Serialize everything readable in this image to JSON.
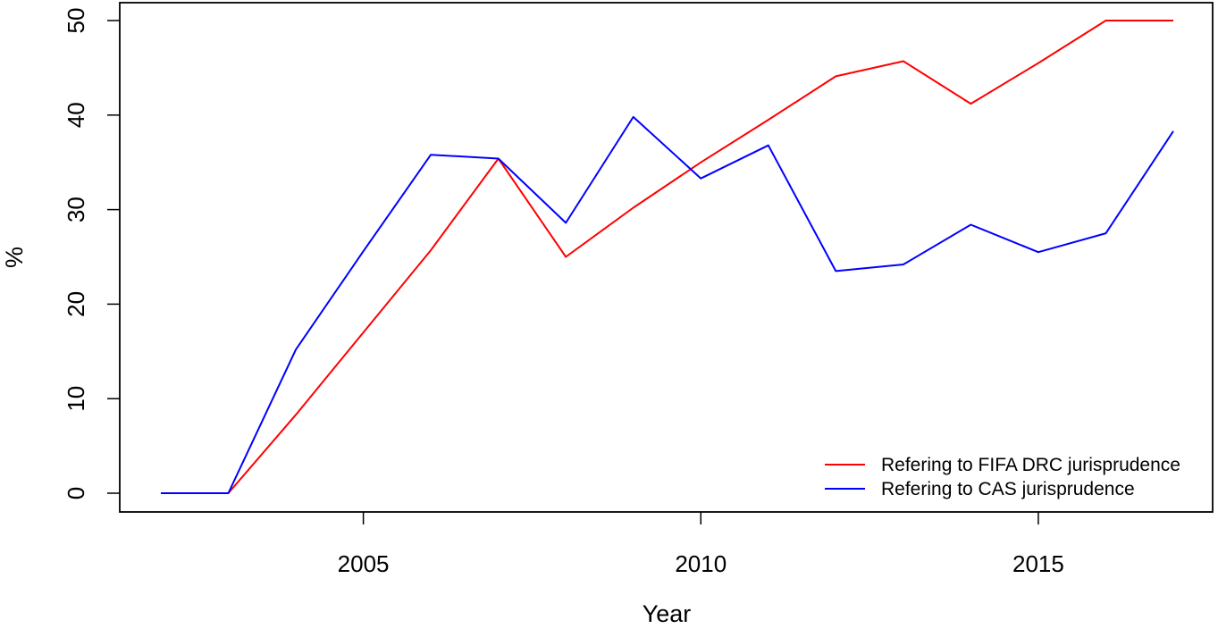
{
  "chart_data": {
    "type": "line",
    "title": "",
    "xlabel": "Year",
    "ylabel": "%",
    "xlim": [
      2001,
      2018
    ],
    "ylim": [
      -2,
      50
    ],
    "xticks": [
      2005,
      2010,
      2015
    ],
    "xtick_labels": [
      "2005",
      "2010",
      "2015"
    ],
    "yticks": [
      0,
      10,
      20,
      30,
      40,
      50
    ],
    "ytick_labels": [
      "0",
      "10",
      "20",
      "30",
      "40",
      "50"
    ],
    "x": [
      2002,
      2003,
      2004,
      2005,
      2006,
      2007,
      2008,
      2009,
      2010,
      2011,
      2012,
      2013,
      2014,
      2015,
      2016,
      2017
    ],
    "series": [
      {
        "name": "Refering to FIFA DRC jurisprudence",
        "color": "#ff0000",
        "values": [
          0,
          0,
          8.3,
          17,
          25.7,
          35.4,
          25,
          30.2,
          35,
          39.5,
          44.1,
          45.7,
          41.2,
          45.5,
          50,
          50
        ]
      },
      {
        "name": "Refering to CAS jurisprudence",
        "color": "#0000ff",
        "values": [
          0,
          0,
          15.2,
          25.6,
          35.8,
          35.4,
          28.6,
          39.8,
          33.3,
          36.8,
          23.5,
          24.2,
          28.4,
          25.5,
          27.5,
          38.3
        ]
      }
    ],
    "grid": false,
    "legend_position": "bottom-right"
  }
}
